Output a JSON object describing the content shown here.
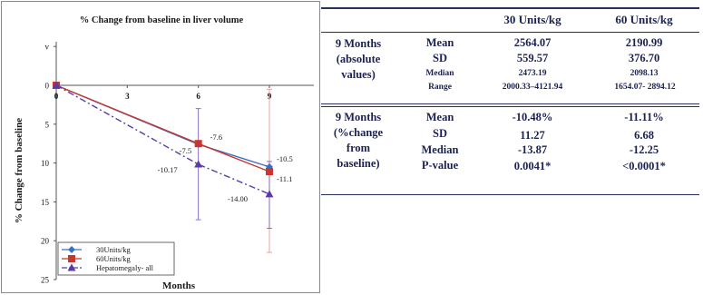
{
  "chart_data": {
    "type": "line",
    "title": "% Change from baseline in liver volume",
    "xlabel": "Months",
    "ylabel": "% Change from baseline",
    "xlim": [
      0,
      12
    ],
    "ylim": [
      -1.5,
      25
    ],
    "x_ticks": [
      "0",
      "3",
      "6",
      "9"
    ],
    "y_ticks": [
      "v",
      "0",
      "5",
      "10",
      "15",
      "20",
      "25"
    ],
    "grid": false,
    "legend_position": "bottom-left",
    "series": [
      {
        "name": "30Units/kg",
        "color": "#3a6fc4",
        "marker": "diamond",
        "dash": "solid",
        "x": [
          0,
          6,
          9
        ],
        "y": [
          0,
          7.6,
          10.5
        ],
        "labels": [
          "",
          "-7.6",
          "-10.5"
        ],
        "error": [
          [
            0,
            0
          ],
          [
            7.6,
            7.6
          ],
          [
            10.5,
            10.5
          ]
        ]
      },
      {
        "name": "60Units/kg",
        "color": "#c8362d",
        "marker": "square",
        "dash": "solid",
        "x": [
          0,
          6,
          9
        ],
        "y": [
          0,
          7.5,
          11.1
        ],
        "labels": [
          "",
          "-7.5",
          "-11.1"
        ],
        "error": [
          [
            0,
            0
          ],
          [
            7.5,
            7.5
          ],
          [
            0.5,
            21.5
          ]
        ]
      },
      {
        "name": "Hepatomegaly- all",
        "color": "#5a3aa8",
        "marker": "triangle",
        "dash": "dashdot",
        "x": [
          0,
          6,
          9
        ],
        "y": [
          0,
          10.17,
          14.0
        ],
        "labels": [
          "",
          "-10.17",
          "-14.00"
        ],
        "error": [
          [
            0,
            0
          ],
          [
            3.0,
            17.3
          ],
          [
            9.8,
            18.4
          ]
        ]
      }
    ]
  },
  "table": {
    "columns": [
      "30 Units/kg",
      "60 Units/kg"
    ],
    "groups": [
      {
        "label_lines": [
          "9 Months",
          "(absolute",
          "values)"
        ],
        "rows": [
          {
            "stat": "Mean",
            "v30": "2564.07",
            "v60": "2190.99",
            "size": "big"
          },
          {
            "stat": "SD",
            "v30": "559.57",
            "v60": "376.70",
            "size": "big"
          },
          {
            "stat": "Median",
            "v30": "2473.19",
            "v60": "2098.13",
            "size": "small"
          },
          {
            "stat": "Range",
            "v30": "2000.33–4121.94",
            "v60": "1654.07- 2894.12",
            "size": "small"
          }
        ]
      },
      {
        "label_lines": [
          "9 Months",
          "(%change",
          "from",
          "baseline)"
        ],
        "rows": [
          {
            "stat": "Mean",
            "v30": "-10.48%",
            "v60": "-11.11%",
            "size": "big"
          },
          {
            "stat": "SD",
            "v30": "11.27",
            "v60": "6.68",
            "size": "big"
          },
          {
            "stat": "Median",
            "v30": "-13.87",
            "v60": "-12.25",
            "size": "big"
          },
          {
            "stat": "P-value",
            "v30": "0.0041*",
            "v60": "<0.0001*",
            "size": "big"
          }
        ]
      }
    ]
  }
}
